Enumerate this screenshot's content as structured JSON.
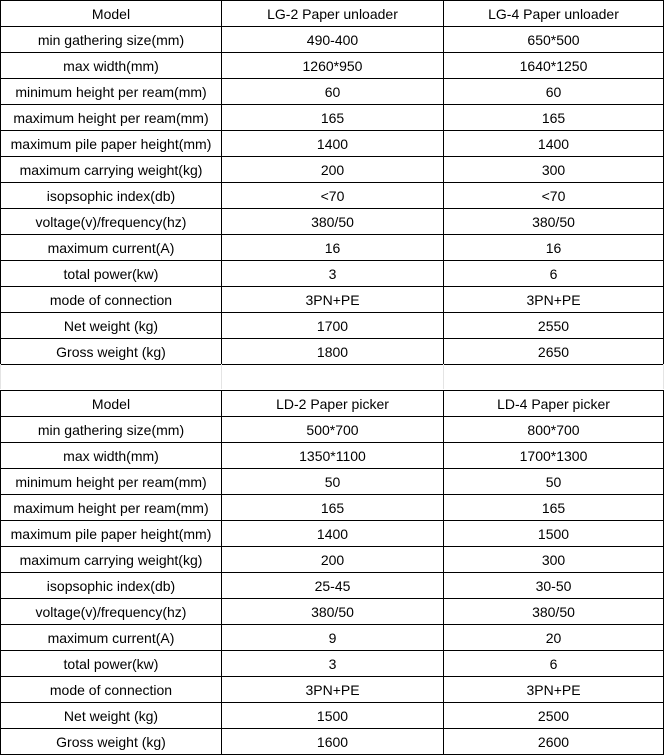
{
  "tables": [
    {
      "header": [
        "Model",
        "LG-2 Paper unloader",
        "LG-4 Paper unloader"
      ],
      "rows": [
        [
          "min gathering size(mm)",
          "490-400",
          "650*500"
        ],
        [
          "max width(mm)",
          "1260*950",
          "1640*1250"
        ],
        [
          "minimum height per ream(mm)",
          "60",
          "60"
        ],
        [
          "maximum height per ream(mm)",
          "165",
          "165"
        ],
        [
          "maximum pile paper height(mm)",
          "1400",
          "1400"
        ],
        [
          "maximum carrying weight(kg)",
          "200",
          "300"
        ],
        [
          "isopsophic index(db)",
          "<70",
          "<70"
        ],
        [
          "voltage(v)/frequency(hz)",
          "380/50",
          "380/50"
        ],
        [
          "maximum current(A)",
          "16",
          "16"
        ],
        [
          "total power(kw)",
          "3",
          "6"
        ],
        [
          "mode of connection",
          "3PN+PE",
          "3PN+PE"
        ],
        [
          "Net weight (kg)",
          "1700",
          "2550"
        ],
        [
          "Gross weight (kg)",
          "1800",
          "2650"
        ]
      ]
    },
    {
      "header": [
        "Model",
        "LD-2 Paper picker",
        "LD-4 Paper picker"
      ],
      "rows": [
        [
          "min gathering size(mm)",
          "500*700",
          "800*700"
        ],
        [
          "max width(mm)",
          "1350*1100",
          "1700*1300"
        ],
        [
          "minimum height per ream(mm)",
          "50",
          "50"
        ],
        [
          "maximum height per ream(mm)",
          "165",
          "165"
        ],
        [
          "maximum pile paper height(mm)",
          "1400",
          "1500"
        ],
        [
          "maximum carrying weight(kg)",
          "200",
          "300"
        ],
        [
          "isopsophic index(db)",
          "25-45",
          "30-50"
        ],
        [
          "voltage(v)/frequency(hz)",
          "380/50",
          "380/50"
        ],
        [
          "maximum current(A)",
          "9",
          "20"
        ],
        [
          "total power(kw)",
          "3",
          "6"
        ],
        [
          "mode of connection",
          "3PN+PE",
          "3PN+PE"
        ],
        [
          "Net weight (kg)",
          "1500",
          "2500"
        ],
        [
          "Gross weight (kg)",
          "1600",
          "2600"
        ]
      ]
    }
  ]
}
